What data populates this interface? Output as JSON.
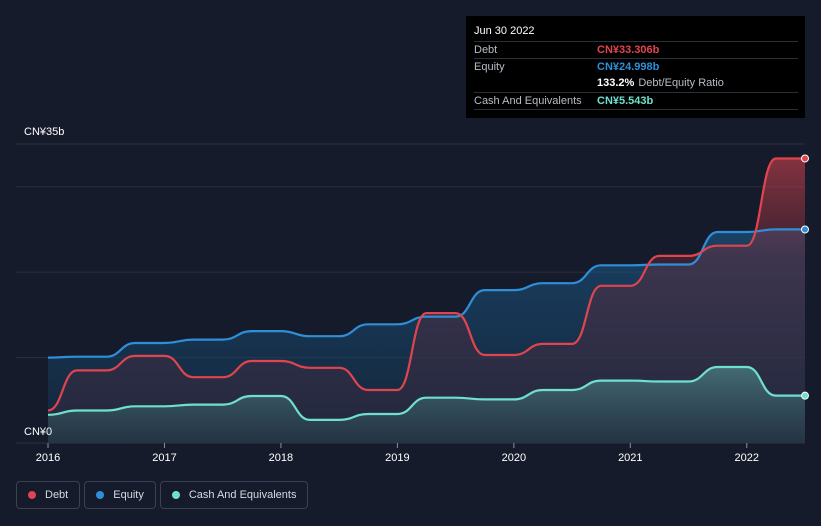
{
  "chart_data": {
    "type": "area",
    "title": "",
    "y_top_label": "CN¥35b",
    "y_zero_label": "CN¥0",
    "ylim": [
      0,
      35
    ],
    "xlim": [
      2016.0,
      2022.5
    ],
    "x_ticks": [
      2016,
      2017,
      2018,
      2019,
      2020,
      2021,
      2022
    ],
    "x_tick_labels": [
      "2016",
      "2017",
      "2018",
      "2019",
      "2020",
      "2021",
      "2022"
    ],
    "series": [
      {
        "name": "Debt",
        "color": "#e0454f",
        "points": [
          [
            2016.0,
            3.8
          ],
          [
            2016.25,
            8.5
          ],
          [
            2016.5,
            8.5
          ],
          [
            2016.75,
            10.2
          ],
          [
            2017.0,
            10.2
          ],
          [
            2017.25,
            7.7
          ],
          [
            2017.5,
            7.7
          ],
          [
            2017.75,
            9.6
          ],
          [
            2018.0,
            9.6
          ],
          [
            2018.25,
            8.8
          ],
          [
            2018.5,
            8.8
          ],
          [
            2018.75,
            6.2
          ],
          [
            2019.0,
            6.2
          ],
          [
            2019.25,
            15.2
          ],
          [
            2019.5,
            15.2
          ],
          [
            2019.75,
            10.3
          ],
          [
            2020.0,
            10.3
          ],
          [
            2020.25,
            11.6
          ],
          [
            2020.5,
            11.6
          ],
          [
            2020.75,
            18.4
          ],
          [
            2021.0,
            18.4
          ],
          [
            2021.25,
            21.9
          ],
          [
            2021.5,
            21.9
          ],
          [
            2021.75,
            23.1
          ],
          [
            2022.0,
            23.1
          ],
          [
            2022.25,
            33.306
          ],
          [
            2022.5,
            33.306
          ]
        ]
      },
      {
        "name": "Equity",
        "color": "#2e8fd8",
        "points": [
          [
            2016.0,
            10.0
          ],
          [
            2016.25,
            10.1
          ],
          [
            2016.5,
            10.1
          ],
          [
            2016.75,
            11.7
          ],
          [
            2017.0,
            11.7
          ],
          [
            2017.25,
            12.1
          ],
          [
            2017.5,
            12.1
          ],
          [
            2017.75,
            13.1
          ],
          [
            2018.0,
            13.1
          ],
          [
            2018.25,
            12.5
          ],
          [
            2018.5,
            12.5
          ],
          [
            2018.75,
            13.9
          ],
          [
            2019.0,
            13.9
          ],
          [
            2019.25,
            14.8
          ],
          [
            2019.5,
            14.8
          ],
          [
            2019.75,
            17.9
          ],
          [
            2020.0,
            17.9
          ],
          [
            2020.25,
            18.7
          ],
          [
            2020.5,
            18.7
          ],
          [
            2020.75,
            20.8
          ],
          [
            2021.0,
            20.8
          ],
          [
            2021.25,
            20.9
          ],
          [
            2021.5,
            20.9
          ],
          [
            2021.75,
            24.7
          ],
          [
            2022.0,
            24.7
          ],
          [
            2022.25,
            24.998
          ],
          [
            2022.5,
            24.998
          ]
        ]
      },
      {
        "name": "Cash And Equivalents",
        "color": "#6fe0cf",
        "points": [
          [
            2016.0,
            3.3
          ],
          [
            2016.25,
            3.8
          ],
          [
            2016.5,
            3.8
          ],
          [
            2016.75,
            4.3
          ],
          [
            2017.0,
            4.3
          ],
          [
            2017.25,
            4.5
          ],
          [
            2017.5,
            4.5
          ],
          [
            2017.75,
            5.5
          ],
          [
            2018.0,
            5.5
          ],
          [
            2018.25,
            2.7
          ],
          [
            2018.5,
            2.7
          ],
          [
            2018.75,
            3.4
          ],
          [
            2019.0,
            3.4
          ],
          [
            2019.25,
            5.3
          ],
          [
            2019.5,
            5.3
          ],
          [
            2019.75,
            5.1
          ],
          [
            2020.0,
            5.1
          ],
          [
            2020.25,
            6.2
          ],
          [
            2020.5,
            6.2
          ],
          [
            2020.75,
            7.3
          ],
          [
            2021.0,
            7.3
          ],
          [
            2021.25,
            7.2
          ],
          [
            2021.5,
            7.2
          ],
          [
            2021.75,
            8.9
          ],
          [
            2022.0,
            8.9
          ],
          [
            2022.25,
            5.543
          ],
          [
            2022.5,
            5.543
          ]
        ]
      }
    ]
  },
  "tooltip": {
    "date": "Jun 30 2022",
    "debt_label": "Debt",
    "debt_value": "CN¥33.306b",
    "debt_color": "#e0454f",
    "equity_label": "Equity",
    "equity_value": "CN¥24.998b",
    "equity_color": "#2e8fd8",
    "ratio_value": "133.2%",
    "ratio_label": "Debt/Equity Ratio",
    "cash_label": "Cash And Equivalents",
    "cash_value": "CN¥5.543b",
    "cash_color": "#6fe0cf"
  },
  "legend": [
    {
      "label": "Debt",
      "color": "#e0454f"
    },
    {
      "label": "Equity",
      "color": "#2e8fd8"
    },
    {
      "label": "Cash And Equivalents",
      "color": "#6fe0cf"
    }
  ]
}
